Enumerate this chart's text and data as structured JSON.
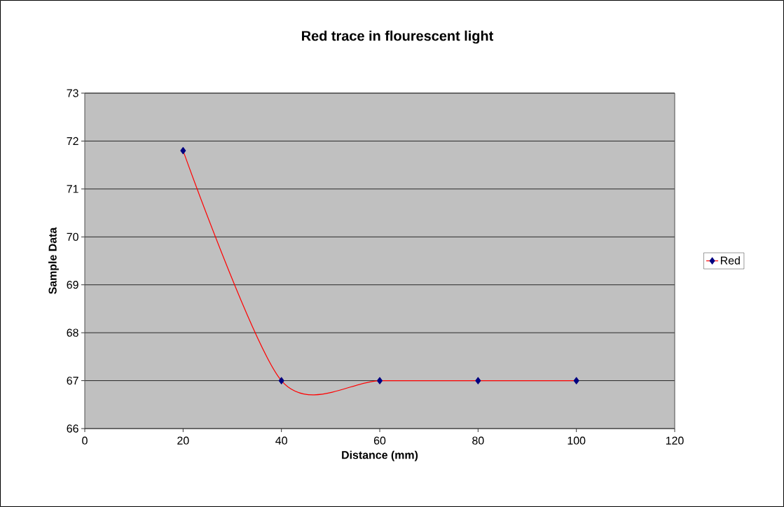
{
  "chart_data": {
    "type": "line",
    "title": "Red trace in flourescent light",
    "xlabel": "Distance (mm)",
    "ylabel": "Sample Data",
    "series": [
      {
        "name": "Red",
        "color": "#ff0000",
        "x": [
          20,
          40,
          60,
          80,
          100
        ],
        "values": [
          71.8,
          67,
          67,
          67,
          67
        ]
      }
    ],
    "xlim": [
      0,
      120
    ],
    "xticks": [
      0,
      20,
      40,
      60,
      80,
      100,
      120
    ],
    "ylim": [
      66,
      73
    ],
    "yticks": [
      66,
      67,
      68,
      69,
      70,
      71,
      72,
      73
    ],
    "grid": "y",
    "legend": "right",
    "marker": "diamond",
    "line_style": "solid"
  }
}
